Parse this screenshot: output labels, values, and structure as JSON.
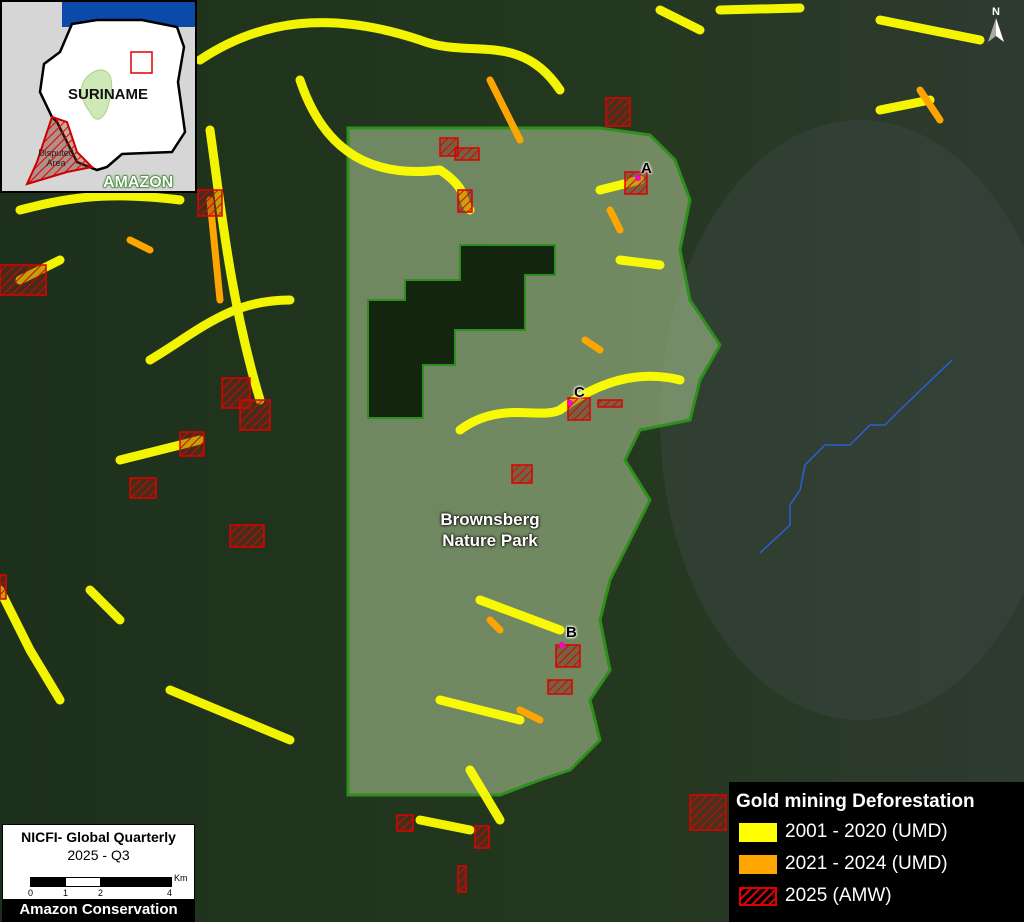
{
  "map": {
    "park_label_line1": "Brownsberg",
    "park_label_line2": "Nature Park",
    "points": [
      "A",
      "B",
      "C"
    ],
    "north_label": "N",
    "colors": {
      "forest": "#1d301c",
      "park_fill": "#9bb585",
      "park_border": "#2e8f1c",
      "deforest_2001_2020": "#ffff00",
      "deforest_2021_2024": "#ffa500",
      "amw_2025": "#e00000",
      "river": "#2a5fd8"
    }
  },
  "inset": {
    "country": "SURINAME",
    "disputed_line1": "Disputed",
    "disputed_line2": "Area",
    "region": "AMAZON"
  },
  "scale": {
    "source": "NICFI- Global Quarterly",
    "period": "2025 - Q3",
    "unit": "Km",
    "ticks": [
      "0",
      "1",
      "2",
      "4"
    ],
    "organization": "Amazon Conservation"
  },
  "legend": {
    "title": "Gold mining Deforestation",
    "items": [
      {
        "label": "2001 - 2020 (UMD)",
        "color": "#ffff00",
        "style": "solid"
      },
      {
        "label": "2021 - 2024 (UMD)",
        "color": "#ffa500",
        "style": "solid"
      },
      {
        "label": "2025 (AMW)",
        "color": "#e00000",
        "style": "hatched"
      }
    ]
  }
}
